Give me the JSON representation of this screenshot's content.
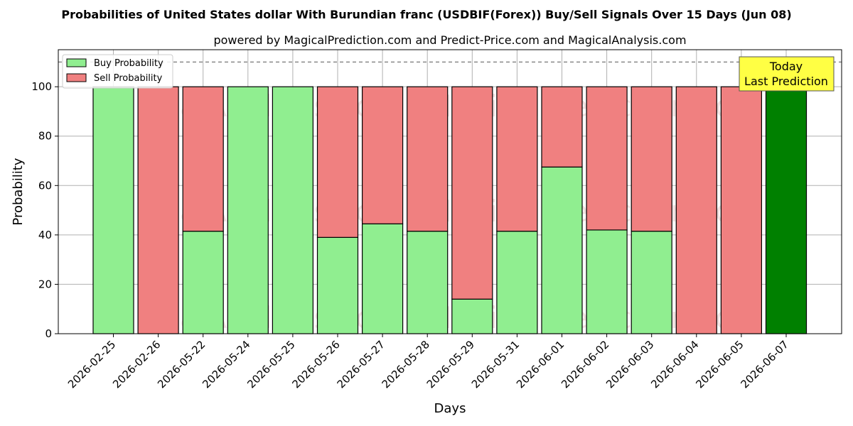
{
  "chart_data": {
    "type": "bar",
    "stacked": true,
    "title": "Probabilities of United States dollar With Burundian franc (USDBIF(Forex)) Buy/Sell Signals Over 15 Days (Jun 08)",
    "subtitle": "powered by MagicalPrediction.com and Predict-Price.com and MagicalAnalysis.com",
    "xlabel": "Days",
    "ylabel": "Probability",
    "ylim": [
      0,
      115
    ],
    "yticks": [
      0,
      20,
      40,
      60,
      80,
      100
    ],
    "reference_line": 110,
    "grid": true,
    "legend_placement": "top-left",
    "categories": [
      "2026-02-25",
      "2026-02-26",
      "2026-05-22",
      "2026-05-24",
      "2026-05-25",
      "2026-05-26",
      "2026-05-27",
      "2026-05-28",
      "2026-05-29",
      "2026-05-31",
      "2026-06-01",
      "2026-06-02",
      "2026-06-03",
      "2026-06-04",
      "2026-06-05",
      "2026-06-07"
    ],
    "series": [
      {
        "name": "Buy Probability",
        "color": "#90ee90",
        "values": [
          100,
          0,
          41.5,
          100,
          100,
          39,
          44.5,
          41.5,
          14,
          41.5,
          67.5,
          42,
          41.5,
          0,
          0,
          100
        ]
      },
      {
        "name": "Sell Probability",
        "color": "#f08080",
        "values": [
          0,
          100,
          58.5,
          0,
          0,
          61,
          55.5,
          58.5,
          86,
          58.5,
          32.5,
          58,
          58.5,
          100,
          100,
          0
        ]
      }
    ],
    "highlight": {
      "index": 15,
      "color": "#008000",
      "label_line1": "Today",
      "label_line2": "Last Prediction"
    },
    "watermarks": [
      "MagicalAnalysis.com",
      "MagicalPrediction.com"
    ]
  }
}
